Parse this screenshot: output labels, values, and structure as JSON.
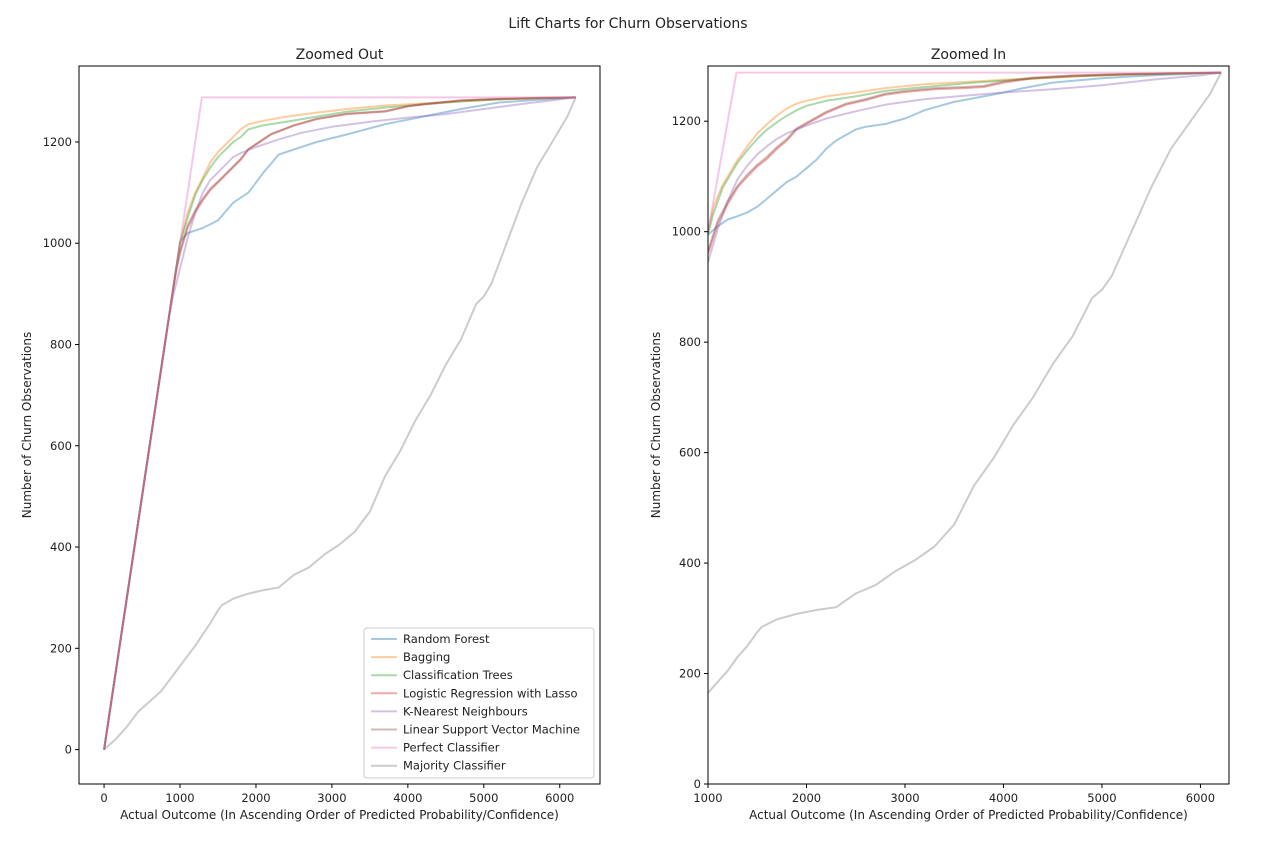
{
  "figure": {
    "suptitle": "Lift Charts for Churn Observations"
  },
  "series_styles": [
    {
      "name": "Random Forest",
      "color": "#1f77b4"
    },
    {
      "name": "Bagging",
      "color": "#ff7f0e"
    },
    {
      "name": "Classification Trees",
      "color": "#2ca02c"
    },
    {
      "name": "Logistic Regression with Lasso",
      "color": "#d62728"
    },
    {
      "name": "K-Nearest Neighbours",
      "color": "#9467bd"
    },
    {
      "name": "Linear Support Vector Machine",
      "color": "#8c564b"
    },
    {
      "name": "Perfect Classifier",
      "color": "#e377c2"
    },
    {
      "name": "Majority Classifier",
      "color": "#7f7f7f"
    }
  ],
  "chart_data": [
    {
      "type": "line",
      "title": "Zoomed Out",
      "xlabel": "Actual Outcome (In Ascending Order of Predicted Probability/Confidence)",
      "ylabel": "Number of Churn Observations",
      "xlim": [
        -330,
        6530
      ],
      "ylim": [
        -68,
        1350
      ],
      "xticks": [
        0,
        1000,
        2000,
        3000,
        4000,
        5000,
        6000
      ],
      "yticks": [
        0,
        200,
        400,
        600,
        800,
        1000,
        1200
      ],
      "legend": "lower-right",
      "series": [
        {
          "name": "Random Forest",
          "x": [
            0,
            600,
            900,
            1000,
            1100,
            1300,
            1500,
            1700,
            1900,
            2100,
            2300,
            2500,
            2800,
            3200,
            3700,
            4200,
            4700,
            5200,
            5700,
            6210
          ],
          "y": [
            0,
            600,
            900,
            1003,
            1020,
            1030,
            1045,
            1080,
            1100,
            1140,
            1175,
            1185,
            1200,
            1215,
            1235,
            1250,
            1265,
            1278,
            1283,
            1288
          ]
        },
        {
          "name": "Bagging",
          "x": [
            0,
            600,
            900,
            1000,
            1100,
            1200,
            1300,
            1400,
            1500,
            1600,
            1700,
            1800,
            1900,
            2100,
            2400,
            2800,
            3200,
            3700,
            4200,
            4700,
            5200,
            5700,
            6210
          ],
          "y": [
            0,
            600,
            900,
            1000,
            1060,
            1100,
            1130,
            1160,
            1180,
            1195,
            1210,
            1225,
            1235,
            1242,
            1250,
            1258,
            1265,
            1272,
            1276,
            1280,
            1284,
            1286,
            1288
          ]
        },
        {
          "name": "Classification Trees",
          "x": [
            0,
            600,
            900,
            1000,
            1100,
            1200,
            1300,
            1400,
            1500,
            1600,
            1700,
            1800,
            1900,
            2100,
            2400,
            2800,
            3200,
            3700,
            4200,
            4700,
            5200,
            5700,
            6210
          ],
          "y": [
            0,
            600,
            900,
            1000,
            1050,
            1095,
            1125,
            1150,
            1170,
            1185,
            1200,
            1210,
            1225,
            1233,
            1240,
            1250,
            1260,
            1268,
            1274,
            1280,
            1284,
            1286,
            1288
          ]
        },
        {
          "name": "Logistic Regression with Lasso",
          "x": [
            0,
            600,
            900,
            950,
            1000,
            1100,
            1200,
            1300,
            1400,
            1500,
            1600,
            1700,
            1800,
            1900,
            2000,
            2200,
            2500,
            2800,
            3200,
            3700,
            4000,
            4200,
            4700,
            5200,
            5700,
            6210
          ],
          "y": [
            0,
            600,
            900,
            945,
            980,
            1030,
            1060,
            1085,
            1105,
            1120,
            1135,
            1150,
            1165,
            1185,
            1195,
            1215,
            1232,
            1245,
            1255,
            1260,
            1270,
            1274,
            1282,
            1285,
            1287,
            1288
          ]
        },
        {
          "name": "K-Nearest Neighbours",
          "x": [
            0,
            600,
            850,
            900,
            950,
            1000,
            1100,
            1200,
            1300,
            1400,
            1500,
            1600,
            1700,
            1800,
            2000,
            2300,
            2600,
            3000,
            3500,
            4000,
            4500,
            5000,
            5500,
            6210
          ],
          "y": [
            0,
            600,
            850,
            890,
            920,
            950,
            1010,
            1060,
            1100,
            1125,
            1140,
            1155,
            1170,
            1178,
            1190,
            1205,
            1218,
            1230,
            1240,
            1248,
            1255,
            1265,
            1275,
            1288
          ]
        },
        {
          "name": "Linear Support Vector Machine",
          "x": [
            0,
            600,
            900,
            950,
            1000,
            1100,
            1200,
            1300,
            1400,
            1500,
            1600,
            1700,
            1800,
            1900,
            2000,
            2200,
            2500,
            2800,
            3200,
            3700,
            4000,
            4200,
            4700,
            5200,
            5700,
            6210
          ],
          "y": [
            0,
            600,
            900,
            950,
            985,
            1035,
            1065,
            1088,
            1108,
            1122,
            1137,
            1152,
            1167,
            1186,
            1196,
            1216,
            1233,
            1246,
            1256,
            1261,
            1271,
            1275,
            1282,
            1285,
            1287,
            1288
          ]
        },
        {
          "name": "Perfect Classifier",
          "x": [
            0,
            1288,
            6210
          ],
          "y": [
            0,
            1288,
            1288
          ]
        },
        {
          "name": "Majority Classifier",
          "x": [
            0,
            150,
            300,
            450,
            600,
            750,
            900,
            1000,
            1200,
            1400,
            1500,
            1550,
            1700,
            1900,
            2100,
            2300,
            2500,
            2700,
            2900,
            3100,
            3300,
            3500,
            3700,
            3900,
            4100,
            4300,
            4500,
            4700,
            4900,
            5000,
            5100,
            5300,
            5500,
            5700,
            5900,
            6100,
            6210
          ],
          "y": [
            0,
            20,
            45,
            75,
            95,
            115,
            145,
            165,
            205,
            250,
            275,
            285,
            298,
            308,
            315,
            320,
            345,
            360,
            385,
            405,
            430,
            470,
            540,
            590,
            650,
            700,
            760,
            810,
            880,
            895,
            920,
            1000,
            1080,
            1150,
            1200,
            1250,
            1288
          ]
        }
      ]
    },
    {
      "type": "line",
      "title": "Zoomed In",
      "xlabel": "Actual Outcome (In Ascending Order of Predicted Probability/Confidence)",
      "ylabel": "Number of Churn Observations",
      "xlim": [
        1000,
        6290
      ],
      "ylim": [
        0,
        1300
      ],
      "xticks": [
        1000,
        2000,
        3000,
        4000,
        5000,
        6000
      ],
      "yticks": [
        0,
        200,
        400,
        600,
        800,
        1000,
        1200
      ],
      "series": [
        {
          "name": "Random Forest",
          "x": [
            1000,
            1100,
            1200,
            1300,
            1400,
            1500,
            1600,
            1700,
            1800,
            1900,
            2000,
            2100,
            2200,
            2300,
            2400,
            2500,
            2600,
            2800,
            3000,
            3200,
            3500,
            3800,
            4000,
            4200,
            4500,
            5000,
            5500,
            6210
          ],
          "y": [
            995,
            1010,
            1022,
            1028,
            1035,
            1045,
            1060,
            1075,
            1090,
            1100,
            1115,
            1130,
            1150,
            1165,
            1175,
            1185,
            1190,
            1195,
            1205,
            1220,
            1235,
            1245,
            1252,
            1260,
            1270,
            1278,
            1283,
            1288
          ]
        },
        {
          "name": "Bagging",
          "x": [
            1000,
            1050,
            1100,
            1150,
            1200,
            1300,
            1400,
            1500,
            1600,
            1700,
            1800,
            1900,
            2000,
            2200,
            2500,
            2800,
            3200,
            3700,
            4200,
            4700,
            5200,
            5700,
            6210
          ],
          "y": [
            1000,
            1040,
            1065,
            1085,
            1100,
            1130,
            1155,
            1178,
            1195,
            1210,
            1223,
            1232,
            1237,
            1245,
            1252,
            1260,
            1267,
            1272,
            1277,
            1281,
            1284,
            1286,
            1288
          ]
        },
        {
          "name": "Classification Trees",
          "x": [
            1000,
            1050,
            1100,
            1150,
            1200,
            1300,
            1400,
            1500,
            1600,
            1700,
            1800,
            1900,
            2000,
            2200,
            2500,
            2800,
            3200,
            3700,
            4200,
            4700,
            5200,
            5700,
            6210
          ],
          "y": [
            995,
            1030,
            1055,
            1080,
            1095,
            1125,
            1148,
            1168,
            1185,
            1198,
            1210,
            1220,
            1228,
            1237,
            1245,
            1255,
            1262,
            1270,
            1276,
            1281,
            1284,
            1286,
            1288
          ]
        },
        {
          "name": "Logistic Regression with Lasso",
          "x": [
            1000,
            1100,
            1200,
            1300,
            1400,
            1500,
            1600,
            1700,
            1800,
            1900,
            2000,
            2100,
            2200,
            2400,
            2600,
            2800,
            3000,
            3300,
            3600,
            3800,
            4000,
            4300,
            4700,
            5200,
            5700,
            6210
          ],
          "y": [
            960,
            1015,
            1050,
            1080,
            1100,
            1118,
            1132,
            1150,
            1165,
            1185,
            1195,
            1205,
            1215,
            1230,
            1238,
            1248,
            1253,
            1258,
            1260,
            1262,
            1270,
            1278,
            1282,
            1285,
            1287,
            1288
          ]
        },
        {
          "name": "K-Nearest Neighbours",
          "x": [
            1000,
            1100,
            1200,
            1300,
            1400,
            1500,
            1600,
            1700,
            1800,
            2000,
            2200,
            2500,
            2800,
            3200,
            3600,
            4000,
            4500,
            5000,
            5500,
            6000,
            6210
          ],
          "y": [
            945,
            1005,
            1055,
            1095,
            1120,
            1140,
            1155,
            1168,
            1178,
            1192,
            1205,
            1218,
            1230,
            1240,
            1246,
            1252,
            1258,
            1265,
            1275,
            1283,
            1288
          ]
        },
        {
          "name": "Linear Support Vector Machine",
          "x": [
            1000,
            1100,
            1200,
            1300,
            1400,
            1500,
            1600,
            1700,
            1800,
            1900,
            2000,
            2100,
            2200,
            2400,
            2600,
            2800,
            3000,
            3300,
            3600,
            3800,
            4000,
            4300,
            4700,
            5200,
            5700,
            6210
          ],
          "y": [
            965,
            1020,
            1055,
            1083,
            1104,
            1121,
            1136,
            1153,
            1168,
            1187,
            1197,
            1207,
            1217,
            1232,
            1240,
            1250,
            1255,
            1260,
            1262,
            1264,
            1272,
            1279,
            1283,
            1285,
            1287,
            1288
          ]
        },
        {
          "name": "Perfect Classifier",
          "x": [
            1000,
            1288,
            6210
          ],
          "y": [
            1000,
            1288,
            1288
          ]
        },
        {
          "name": "Majority Classifier",
          "x": [
            1000,
            1100,
            1200,
            1300,
            1400,
            1500,
            1550,
            1700,
            1900,
            2100,
            2300,
            2500,
            2700,
            2900,
            3100,
            3300,
            3500,
            3700,
            3900,
            4100,
            4300,
            4500,
            4700,
            4900,
            5000,
            5100,
            5300,
            5500,
            5700,
            5900,
            6100,
            6210
          ],
          "y": [
            165,
            185,
            205,
            230,
            250,
            275,
            285,
            298,
            308,
            315,
            320,
            345,
            360,
            385,
            405,
            430,
            470,
            540,
            590,
            650,
            700,
            760,
            810,
            880,
            895,
            920,
            1000,
            1080,
            1150,
            1200,
            1250,
            1288
          ]
        }
      ]
    }
  ]
}
